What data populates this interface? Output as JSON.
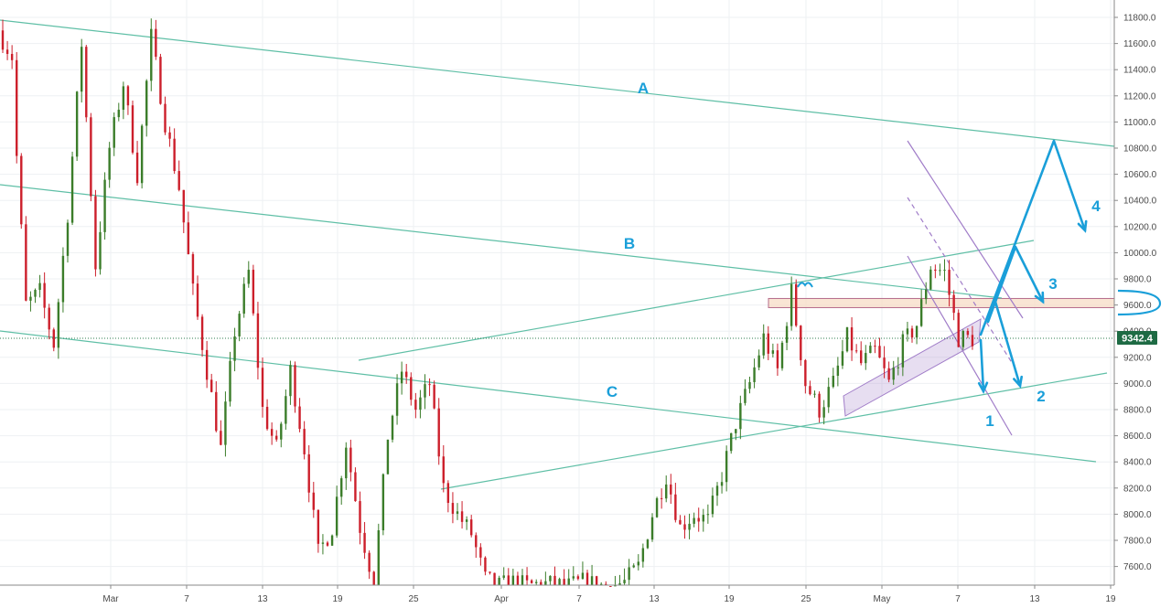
{
  "chart_data": {
    "type": "candlestick",
    "y_axis": {
      "range": [
        7450,
        11950
      ],
      "ticks": [
        "7600.0",
        "7800.0",
        "8000.0",
        "8200.0",
        "8400.0",
        "8600.0",
        "8800.0",
        "9000.0",
        "9200.0",
        "9400.0",
        "9600.0",
        "9800.0",
        "10000.0",
        "10200.0",
        "10400.0",
        "10600.0",
        "10800.0",
        "11000.0",
        "11200.0",
        "11400.0",
        "11600.0",
        "11800.0"
      ],
      "position": "right"
    },
    "x_axis": {
      "ticks": [
        "Mar",
        "7",
        "13",
        "19",
        "25",
        "Apr",
        "7",
        "13",
        "19",
        "25",
        "May",
        "7",
        "13",
        "19"
      ]
    },
    "grid": true,
    "current_price": {
      "value": 9342.4,
      "label": "9342.4",
      "color": "#1e6b44"
    },
    "colors": {
      "up": "#3b7d2a",
      "down": "#cc1f2b",
      "channel": "#5fbfa6",
      "projection": "#1a9fd9",
      "bearish_channel": "#a07cc8"
    },
    "channel_labels": [
      "A",
      "B",
      "C"
    ],
    "wave_labels": [
      "1",
      "2",
      "3",
      "4"
    ],
    "resistance_zone": {
      "from": 9580,
      "to": 9650
    },
    "price_path": [
      [
        11700,
        11500
      ],
      [
        11300,
        9600
      ],
      [
        9600,
        9700
      ],
      [
        9700,
        9300
      ],
      [
        9300,
        10300
      ],
      [
        10300,
        11600
      ],
      [
        11600,
        9900
      ],
      [
        9900,
        10800
      ],
      [
        10800,
        11300
      ],
      [
        11300,
        10600
      ],
      [
        10600,
        11650
      ],
      [
        11650,
        11000
      ],
      [
        11000,
        10500
      ],
      [
        10500,
        9700
      ],
      [
        9700,
        9100
      ],
      [
        9100,
        8500
      ],
      [
        8500,
        9400
      ],
      [
        9400,
        9850
      ],
      [
        9850,
        8800
      ],
      [
        8800,
        8500
      ],
      [
        8500,
        9100
      ],
      [
        9100,
        8500
      ],
      [
        8500,
        7700
      ],
      [
        7700,
        7900
      ],
      [
        7900,
        8550
      ],
      [
        8550,
        7900
      ],
      [
        7900,
        7480
      ],
      [
        7480,
        8600
      ],
      [
        8600,
        9100
      ],
      [
        9100,
        8800
      ],
      [
        8800,
        9000
      ],
      [
        9000,
        8200
      ],
      [
        8200,
        8000
      ],
      [
        8000,
        7850
      ],
      [
        7850,
        7500
      ],
      [
        7500,
        7450
      ],
      [
        7450,
        7480
      ],
      [
        7480,
        7450
      ],
      [
        7450,
        7470
      ],
      [
        7470,
        7460
      ],
      [
        7460,
        7450
      ],
      [
        7450,
        7480
      ],
      [
        7480,
        7460
      ],
      [
        7460,
        7450
      ],
      [
        7450,
        7480
      ],
      [
        7480,
        7600
      ],
      [
        7600,
        8000
      ],
      [
        8000,
        8300
      ],
      [
        8300,
        7900
      ],
      [
        7900,
        8000
      ],
      [
        8000,
        7950
      ],
      [
        7950,
        8300
      ],
      [
        8300,
        8700
      ],
      [
        8700,
        9000
      ],
      [
        9000,
        9350
      ],
      [
        9350,
        9100
      ],
      [
        9100,
        9700
      ],
      [
        9700,
        9000
      ],
      [
        9000,
        8800
      ],
      [
        8800,
        9000
      ],
      [
        9000,
        9350
      ],
      [
        9350,
        9150
      ],
      [
        9150,
        9250
      ],
      [
        9250,
        9000
      ],
      [
        9000,
        9300
      ],
      [
        9300,
        9450
      ],
      [
        9450,
        9900
      ],
      [
        9900,
        9850
      ],
      [
        9850,
        9350
      ],
      [
        9350,
        9342
      ]
    ]
  }
}
